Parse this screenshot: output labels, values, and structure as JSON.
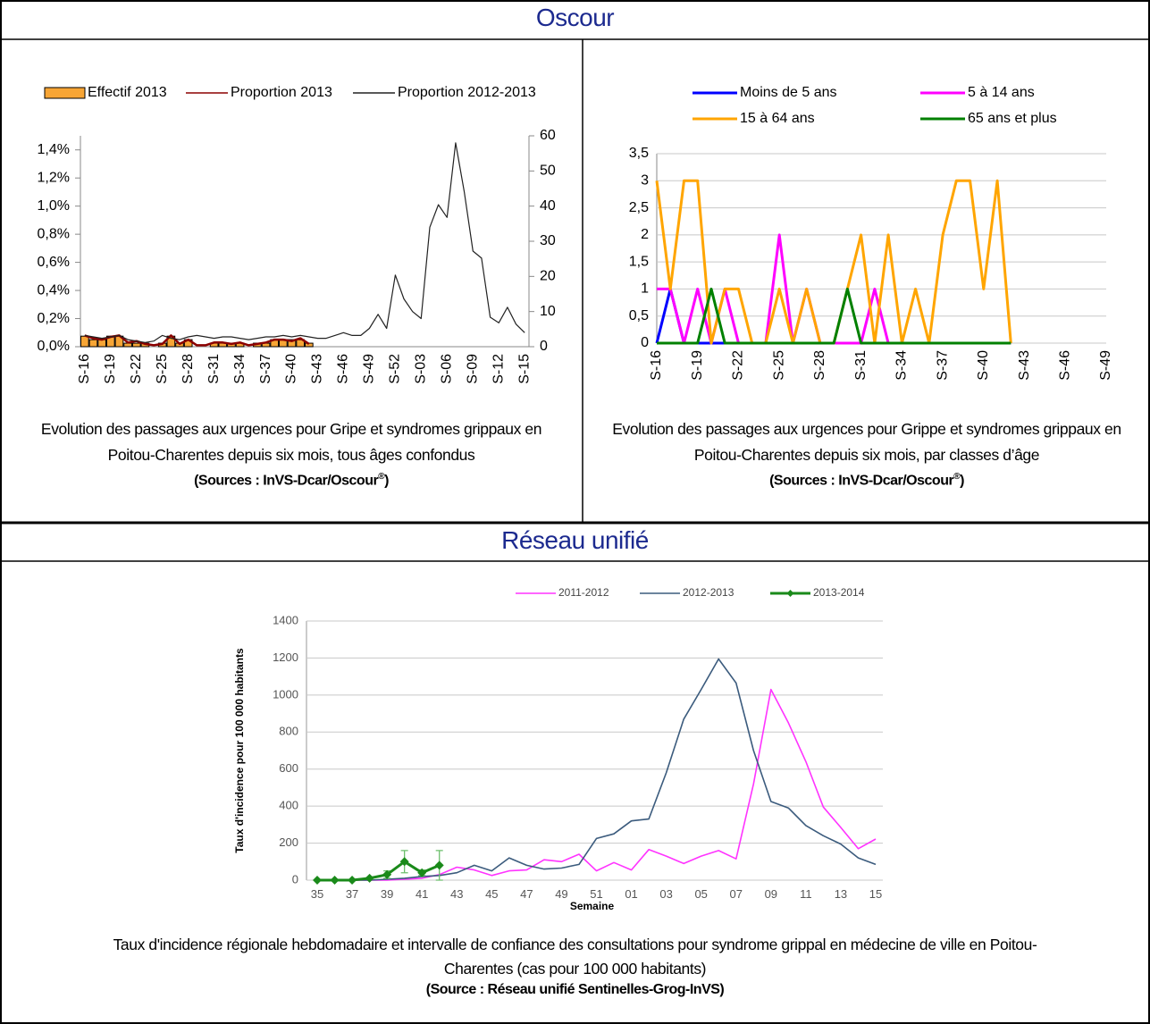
{
  "sections": [
    {
      "title": "Oscour"
    },
    {
      "title": "Réseau unifié"
    }
  ],
  "chart_data": [
    {
      "type": "combo",
      "caption": "Evolution des passages aux urgences pour Gripe et syndromes grippaux  en Poitou-Charentes depuis six mois, tous âges confondus",
      "source": "(Sources : InVS-Dcar/Oscour",
      "source_mark": "®",
      "source_end": ")",
      "categories": [
        "S-16",
        null,
        null,
        "S-19",
        null,
        null,
        "S-22",
        null,
        null,
        "S-25",
        null,
        null,
        "S-28",
        null,
        null,
        "S-31",
        null,
        null,
        "S-34",
        null,
        null,
        "S-37",
        null,
        null,
        "S-40",
        null,
        null,
        "S-43",
        null,
        null,
        "S-46",
        null,
        null,
        "S-49",
        null,
        null,
        "S-52",
        null,
        null,
        "S-03",
        null,
        null,
        "S-06",
        null,
        null,
        "S-09",
        null,
        null,
        "S-12",
        null,
        null,
        "S-15"
      ],
      "ylim": [
        0,
        1.5
      ],
      "yticks": [
        {
          "value": 0,
          "label": "0,0%"
        },
        {
          "value": 0.2,
          "label": "0,2%"
        },
        {
          "value": 0.4,
          "label": "0,4%"
        },
        {
          "value": 0.6,
          "label": "0,6%"
        },
        {
          "value": 0.8,
          "label": "0,8%"
        },
        {
          "value": 1.0,
          "label": "1,0%"
        },
        {
          "value": 1.2,
          "label": "1,2%"
        },
        {
          "value": 1.4,
          "label": "1,4%"
        }
      ],
      "y2lim": [
        0,
        60
      ],
      "y2ticks": [
        0,
        10,
        20,
        30,
        40,
        50,
        60
      ],
      "grid": false,
      "series": [
        {
          "name": "Effectif 2013",
          "type": "bar",
          "axis": "y2",
          "color": "#f7a535",
          "values": [
            3,
            2,
            2,
            3,
            3,
            1,
            1,
            1,
            0,
            1,
            3,
            1,
            2,
            0,
            0,
            1,
            1,
            1,
            1,
            0,
            1,
            1,
            2,
            2,
            2,
            2,
            1,
            null,
            null,
            null,
            null,
            null,
            null,
            null,
            null,
            null,
            null,
            null,
            null,
            null,
            null,
            null,
            null,
            null,
            null,
            null,
            null,
            null,
            null,
            null,
            null,
            null
          ]
        },
        {
          "name": "Proportion 2013",
          "type": "line",
          "color": "#8b0000",
          "values": [
            0.08,
            0.06,
            0.05,
            0.07,
            0.08,
            0.03,
            0.04,
            0.02,
            0.01,
            0.02,
            0.08,
            0.02,
            0.05,
            0.01,
            0.01,
            0.03,
            0.03,
            0.02,
            0.03,
            0.01,
            0.02,
            0.03,
            0.05,
            0.05,
            0.04,
            0.06,
            0.02,
            null,
            null,
            null,
            null,
            null,
            null,
            null,
            null,
            null,
            null,
            null,
            null,
            null,
            null,
            null,
            null,
            null,
            null,
            null,
            null,
            null,
            null,
            null,
            null,
            null
          ]
        },
        {
          "name": "Proportion 2012-2013",
          "type": "line",
          "color": "#222222",
          "values": [
            0.08,
            0.07,
            0.06,
            0.07,
            0.08,
            0.05,
            0.04,
            0.03,
            0.04,
            0.08,
            0.06,
            0.05,
            0.07,
            0.08,
            0.07,
            0.06,
            0.07,
            0.07,
            0.06,
            0.05,
            0.06,
            0.07,
            0.07,
            0.08,
            0.07,
            0.08,
            0.07,
            0.06,
            0.06,
            0.08,
            0.1,
            0.08,
            0.08,
            0.13,
            0.23,
            0.13,
            0.51,
            0.34,
            0.25,
            0.2,
            0.85,
            1.01,
            0.92,
            1.45,
            1.1,
            0.68,
            0.63,
            0.21,
            0.17,
            0.28,
            0.16,
            0.1
          ]
        }
      ]
    },
    {
      "type": "line",
      "caption": "Evolution des passages aux urgences pour Grippe et syndromes grippaux  en Poitou-Charentes depuis six mois, par classes d’âge",
      "source": "(Sources : InVS-Dcar/Oscour",
      "source_mark": "®",
      "source_end": ")",
      "categories": [
        "S-16",
        null,
        null,
        "S-19",
        null,
        null,
        "S-22",
        null,
        null,
        "S-25",
        null,
        null,
        "S-28",
        null,
        null,
        "S-31",
        null,
        null,
        "S-34",
        null,
        null,
        "S-37",
        null,
        null,
        "S-40",
        null,
        null,
        "S-43",
        null,
        null,
        "S-46",
        null,
        null,
        "S-49"
      ],
      "ylim": [
        0,
        3.5
      ],
      "yticks": [
        0,
        {
          "value": 0.5,
          "label": "0,5"
        },
        1,
        {
          "value": 1.5,
          "label": "1,5"
        },
        2,
        {
          "value": 2.5,
          "label": "2,5"
        },
        3,
        {
          "value": 3.5,
          "label": "3,5"
        }
      ],
      "grid": true,
      "series": [
        {
          "name": "Moins de 5 ans",
          "type": "line",
          "color": "#0000ff",
          "values": [
            0,
            1,
            0,
            0,
            0,
            0,
            0,
            0,
            0,
            0,
            0,
            0,
            0,
            0,
            0,
            0,
            0,
            0,
            0,
            0,
            0,
            0,
            0,
            0,
            0,
            0,
            0,
            null,
            null,
            null,
            null,
            null,
            null,
            null
          ]
        },
        {
          "name": "5 à 14 ans",
          "type": "line",
          "color": "#ff00ff",
          "values": [
            1,
            1,
            0,
            1,
            0,
            1,
            0,
            0,
            0,
            2,
            0,
            1,
            0,
            0,
            0,
            0,
            1,
            0,
            0,
            0,
            0,
            0,
            0,
            0,
            0,
            0,
            0,
            null,
            null,
            null,
            null,
            null,
            null,
            null
          ]
        },
        {
          "name": "15 à 64 ans",
          "type": "line",
          "color": "#ffa500",
          "values": [
            3,
            1,
            3,
            3,
            0,
            1,
            1,
            0,
            0,
            1,
            0,
            1,
            0,
            0,
            1,
            2,
            0,
            2,
            0,
            1,
            0,
            2,
            3,
            3,
            1,
            3,
            0,
            null,
            null,
            null,
            null,
            null,
            null,
            null
          ]
        },
        {
          "name": "65 ans et plus",
          "type": "line",
          "color": "#008000",
          "values": [
            0,
            0,
            0,
            0,
            1,
            0,
            0,
            0,
            0,
            0,
            0,
            0,
            0,
            0,
            1,
            0,
            0,
            0,
            0,
            0,
            0,
            0,
            0,
            0,
            0,
            0,
            0,
            null,
            null,
            null,
            null,
            null,
            null,
            null
          ]
        }
      ]
    },
    {
      "type": "line",
      "caption": "Taux d'incidence régionale hebdomadaire et intervalle de confiance des consultations pour syndrome grippal en médecine de ville en Poitou-Charentes (cas pour 100 000 habitants)",
      "source": "(Source : Réseau unifié Sentinelles-Grog-InVS)",
      "x_label": "Semaine",
      "y_label": "Taux d'incidence pour 100 000 habitants",
      "categories": [
        "35",
        null,
        "37",
        null,
        "39",
        null,
        "41",
        null,
        "43",
        null,
        "45",
        null,
        "47",
        null,
        "49",
        null,
        "51",
        null,
        "01",
        null,
        "03",
        null,
        "05",
        null,
        "07",
        null,
        "09",
        null,
        "11",
        null,
        "13",
        null,
        "15"
      ],
      "ylim": [
        0,
        1400
      ],
      "yticks": [
        0,
        200,
        400,
        600,
        800,
        1000,
        1200,
        1400
      ],
      "grid": true,
      "series": [
        {
          "name": "2011-2012",
          "type": "line",
          "color": "#ff33ff",
          "values": [
            0,
            0,
            0,
            0,
            0,
            5,
            10,
            30,
            70,
            55,
            25,
            50,
            55,
            110,
            100,
            140,
            50,
            95,
            55,
            165,
            130,
            90,
            130,
            160,
            115,
            520,
            1030,
            850,
            640,
            395,
            285,
            170,
            222
          ]
        },
        {
          "name": "2012-2013",
          "type": "line",
          "color": "#3b5b7d",
          "values": [
            0,
            0,
            0,
            0,
            5,
            10,
            20,
            25,
            40,
            80,
            50,
            120,
            80,
            60,
            65,
            85,
            225,
            250,
            320,
            330,
            580,
            870,
            1030,
            1195,
            1065,
            700,
            425,
            390,
            295,
            240,
            195,
            120,
            85
          ]
        },
        {
          "name": "2013-2014",
          "type": "line",
          "color": "#1a8a1a",
          "marker": "diamond",
          "values": [
            0,
            0,
            0,
            10,
            30,
            100,
            40,
            80,
            null,
            null,
            null,
            null,
            null,
            null,
            null,
            null,
            null,
            null,
            null,
            null,
            null,
            null,
            null,
            null,
            null,
            null,
            null,
            null,
            null,
            null,
            null,
            null,
            null
          ],
          "errors": [
            0,
            0,
            0,
            5,
            20,
            60,
            15,
            80,
            null,
            null,
            null,
            null,
            null,
            null,
            null,
            null,
            null,
            null,
            null,
            null,
            null,
            null,
            null,
            null,
            null,
            null,
            null,
            null,
            null,
            null,
            null,
            null,
            null
          ]
        }
      ]
    }
  ]
}
